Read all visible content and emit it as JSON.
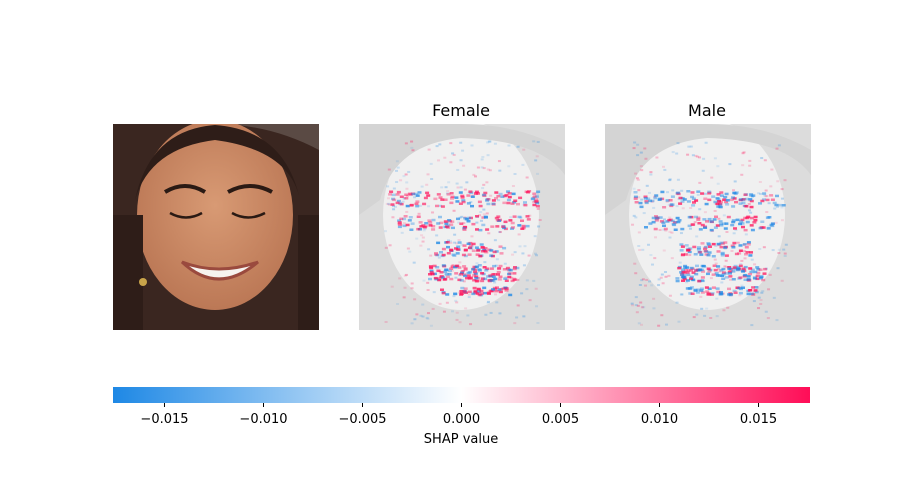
{
  "chart_data": {
    "type": "heatmap",
    "panels": [
      {
        "title": "",
        "kind": "input-photo"
      },
      {
        "title": "Female",
        "kind": "shap-overlay",
        "map_key": "female"
      },
      {
        "title": "Male",
        "kind": "shap-overlay",
        "map_key": "male"
      }
    ],
    "colorbar": {
      "label": "SHAP value",
      "range": [
        -0.0176,
        0.0176
      ],
      "ticks": [
        -0.015,
        -0.01,
        -0.005,
        0.0,
        0.005,
        0.01,
        0.015
      ],
      "tick_labels": [
        "−0.015",
        "−0.010",
        "−0.005",
        "0.000",
        "0.005",
        "0.010",
        "0.015"
      ],
      "negative_color": "#1e88e5",
      "positive_color": "#ff0d57"
    },
    "colors": {
      "background_gray": "#dcdcdc",
      "skin": "#c98a66",
      "hair": "#3a2620"
    }
  }
}
